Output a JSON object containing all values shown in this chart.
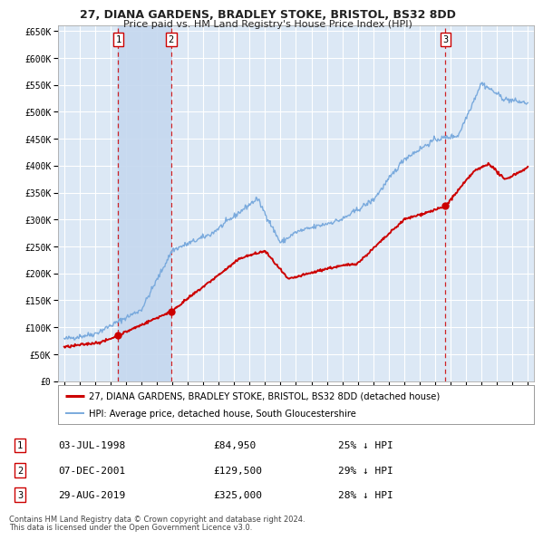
{
  "title": "27, DIANA GARDENS, BRADLEY STOKE, BRISTOL, BS32 8DD",
  "subtitle": "Price paid vs. HM Land Registry's House Price Index (HPI)",
  "background_color": "#ffffff",
  "plot_bg_color": "#dce8f5",
  "grid_color": "#ffffff",
  "legend_entries": [
    "27, DIANA GARDENS, BRADLEY STOKE, BRISTOL, BS32 8DD (detached house)",
    "HPI: Average price, detached house, South Gloucestershire"
  ],
  "line_colors": [
    "#cc0000",
    "#7aaadd"
  ],
  "sale_points": [
    {
      "label": "1",
      "date_num": 1998.5,
      "price": 84950
    },
    {
      "label": "2",
      "date_num": 2001.92,
      "price": 129500
    },
    {
      "label": "3",
      "date_num": 2019.67,
      "price": 325000
    }
  ],
  "vline_color": "#cc0000",
  "footer_lines": [
    "Contains HM Land Registry data © Crown copyright and database right 2024.",
    "This data is licensed under the Open Government Licence v3.0."
  ],
  "table_rows": [
    {
      "num": "1",
      "date": "03-JUL-1998",
      "price": "£84,950",
      "hpi": "25% ↓ HPI"
    },
    {
      "num": "2",
      "date": "07-DEC-2001",
      "price": "£129,500",
      "hpi": "29% ↓ HPI"
    },
    {
      "num": "3",
      "date": "29-AUG-2019",
      "price": "£325,000",
      "hpi": "28% ↓ HPI"
    }
  ],
  "ylim": [
    0,
    660000
  ],
  "xlim": [
    1994.6,
    2025.4
  ],
  "yticks": [
    0,
    50000,
    100000,
    150000,
    200000,
    250000,
    300000,
    350000,
    400000,
    450000,
    500000,
    550000,
    600000,
    650000
  ],
  "ytick_labels": [
    "£0",
    "£50K",
    "£100K",
    "£150K",
    "£200K",
    "£250K",
    "£300K",
    "£350K",
    "£400K",
    "£450K",
    "£500K",
    "£550K",
    "£600K",
    "£650K"
  ]
}
